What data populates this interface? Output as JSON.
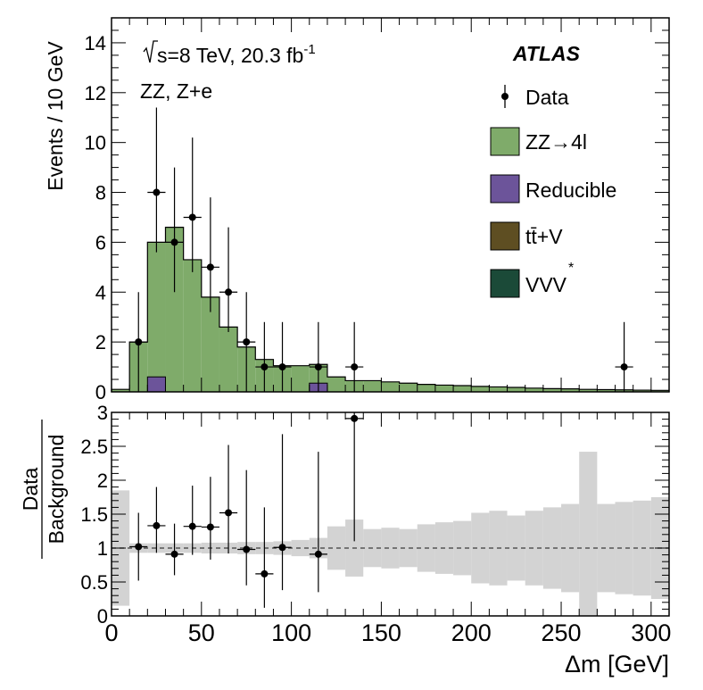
{
  "chart_data": [
    {
      "type": "histogram",
      "panel": "main",
      "ylabel": "Events / 10 GeV",
      "ylim": [
        0,
        15
      ],
      "xlim": [
        0,
        310
      ],
      "bin_width": 10,
      "yticks": [
        "0",
        "2",
        "4",
        "6",
        "8",
        "10",
        "12",
        "14"
      ],
      "annotations": {
        "energy_prefix": "s=8 TeV, 20.3 fb",
        "energy_sup": "-1",
        "channel": "ZZ, Z+e",
        "experiment": "ATLAS"
      },
      "legend": {
        "data": "Data",
        "zz": "ZZ→4l",
        "reducible": "Reducible",
        "ttv": "tt̄+V",
        "vvv": "VVV",
        "vvv_sup": "*"
      },
      "colors": {
        "zz": "#7fab6a",
        "reducible": "#6c549a",
        "ttv": "#5e4e22",
        "vvv": "#1b4a38",
        "band": "#d3d3d3"
      },
      "bin_edges": [
        0,
        10,
        20,
        30,
        40,
        50,
        60,
        70,
        80,
        90,
        100,
        110,
        120,
        130,
        140,
        150,
        160,
        170,
        180,
        190,
        200,
        210,
        220,
        230,
        240,
        250,
        260,
        270,
        280,
        290,
        300,
        310
      ],
      "stack_total": [
        0.1,
        2.0,
        6.0,
        6.6,
        5.3,
        3.8,
        2.6,
        1.8,
        1.3,
        1.05,
        1.05,
        1.1,
        0.6,
        0.45,
        0.45,
        0.4,
        0.35,
        0.3,
        0.27,
        0.25,
        0.22,
        0.2,
        0.18,
        0.15,
        0.13,
        0.12,
        0.1,
        0.09,
        0.08,
        0.07,
        0.06
      ],
      "reducible": [
        0,
        0,
        0.6,
        0,
        0,
        0,
        0,
        0,
        0,
        0,
        0,
        0.35,
        0,
        0,
        0,
        0,
        0,
        0,
        0,
        0,
        0,
        0,
        0,
        0,
        0,
        0,
        0,
        0,
        0,
        0,
        0
      ],
      "data_points": [
        {
          "x": 15,
          "y": 2,
          "lo": 0.0,
          "hi": 4.0
        },
        {
          "x": 25,
          "y": 8,
          "lo": 5.6,
          "hi": 11.4
        },
        {
          "x": 35,
          "y": 6,
          "lo": 4.0,
          "hi": 9.0
        },
        {
          "x": 45,
          "y": 7,
          "lo": 4.8,
          "hi": 10.2
        },
        {
          "x": 55,
          "y": 5,
          "lo": 3.2,
          "hi": 7.8
        },
        {
          "x": 65,
          "y": 4,
          "lo": 2.4,
          "hi": 6.6
        },
        {
          "x": 75,
          "y": 2,
          "lo": 0.0,
          "hi": 4.0
        },
        {
          "x": 85,
          "y": 1,
          "lo": 0.0,
          "hi": 2.8
        },
        {
          "x": 95,
          "y": 1,
          "lo": 0.0,
          "hi": 2.8
        },
        {
          "x": 115,
          "y": 1,
          "lo": 0.0,
          "hi": 2.8
        },
        {
          "x": 135,
          "y": 1,
          "lo": 0.0,
          "hi": 2.8
        },
        {
          "x": 285,
          "y": 1,
          "lo": 0.0,
          "hi": 2.8
        }
      ]
    },
    {
      "type": "ratio",
      "panel": "ratio",
      "ylabel_top": "Data",
      "ylabel_bottom": "Background",
      "ylim": [
        0,
        3
      ],
      "yticks": [
        "0",
        "0.5",
        "1",
        "1.5",
        "2",
        "2.5",
        "3"
      ],
      "xlabel": "Δm [GeV]",
      "xticks": [
        "0",
        "50",
        "100",
        "150",
        "200",
        "250",
        "300"
      ],
      "xtick_values": [
        0,
        50,
        100,
        150,
        200,
        250,
        300
      ],
      "band": [
        {
          "x0": 0,
          "x1": 10,
          "lo": 0.15,
          "hi": 1.85
        },
        {
          "x0": 10,
          "x1": 20,
          "lo": 0.93,
          "hi": 1.07
        },
        {
          "x0": 20,
          "x1": 30,
          "lo": 0.93,
          "hi": 1.07
        },
        {
          "x0": 30,
          "x1": 40,
          "lo": 0.93,
          "hi": 1.07
        },
        {
          "x0": 40,
          "x1": 50,
          "lo": 0.93,
          "hi": 1.07
        },
        {
          "x0": 50,
          "x1": 60,
          "lo": 0.92,
          "hi": 1.08
        },
        {
          "x0": 60,
          "x1": 70,
          "lo": 0.92,
          "hi": 1.08
        },
        {
          "x0": 70,
          "x1": 80,
          "lo": 0.91,
          "hi": 1.09
        },
        {
          "x0": 80,
          "x1": 90,
          "lo": 0.91,
          "hi": 1.09
        },
        {
          "x0": 90,
          "x1": 100,
          "lo": 0.9,
          "hi": 1.1
        },
        {
          "x0": 100,
          "x1": 110,
          "lo": 0.88,
          "hi": 1.12
        },
        {
          "x0": 110,
          "x1": 120,
          "lo": 0.85,
          "hi": 1.15
        },
        {
          "x0": 120,
          "x1": 130,
          "lo": 0.68,
          "hi": 1.32
        },
        {
          "x0": 130,
          "x1": 140,
          "lo": 0.58,
          "hi": 1.42
        },
        {
          "x0": 140,
          "x1": 150,
          "lo": 0.72,
          "hi": 1.28
        },
        {
          "x0": 150,
          "x1": 160,
          "lo": 0.7,
          "hi": 1.3
        },
        {
          "x0": 160,
          "x1": 170,
          "lo": 0.72,
          "hi": 1.28
        },
        {
          "x0": 170,
          "x1": 180,
          "lo": 0.65,
          "hi": 1.35
        },
        {
          "x0": 180,
          "x1": 190,
          "lo": 0.62,
          "hi": 1.38
        },
        {
          "x0": 190,
          "x1": 200,
          "lo": 0.6,
          "hi": 1.4
        },
        {
          "x0": 200,
          "x1": 210,
          "lo": 0.48,
          "hi": 1.52
        },
        {
          "x0": 210,
          "x1": 220,
          "lo": 0.45,
          "hi": 1.55
        },
        {
          "x0": 220,
          "x1": 230,
          "lo": 0.52,
          "hi": 1.48
        },
        {
          "x0": 230,
          "x1": 240,
          "lo": 0.45,
          "hi": 1.55
        },
        {
          "x0": 240,
          "x1": 250,
          "lo": 0.4,
          "hi": 1.6
        },
        {
          "x0": 250,
          "x1": 260,
          "lo": 0.35,
          "hi": 1.65
        },
        {
          "x0": 260,
          "x1": 270,
          "lo": 0.0,
          "hi": 2.42
        },
        {
          "x0": 270,
          "x1": 280,
          "lo": 0.35,
          "hi": 1.65
        },
        {
          "x0": 280,
          "x1": 290,
          "lo": 0.32,
          "hi": 1.68
        },
        {
          "x0": 290,
          "x1": 300,
          "lo": 0.3,
          "hi": 1.7
        },
        {
          "x0": 300,
          "x1": 310,
          "lo": 0.25,
          "hi": 1.75
        }
      ],
      "points": [
        {
          "x": 15,
          "y": 1.02,
          "lo": 0.52,
          "hi": 1.52
        },
        {
          "x": 25,
          "y": 1.33,
          "lo": 0.93,
          "hi": 1.9
        },
        {
          "x": 35,
          "y": 0.91,
          "lo": 0.6,
          "hi": 1.36
        },
        {
          "x": 45,
          "y": 1.32,
          "lo": 0.9,
          "hi": 1.92
        },
        {
          "x": 55,
          "y": 1.31,
          "lo": 0.83,
          "hi": 2.05
        },
        {
          "x": 65,
          "y": 1.52,
          "lo": 0.92,
          "hi": 2.52
        },
        {
          "x": 75,
          "y": 0.98,
          "lo": 0.45,
          "hi": 2.15
        },
        {
          "x": 85,
          "y": 0.62,
          "lo": 0.12,
          "hi": 1.6
        },
        {
          "x": 95,
          "y": 1.01,
          "lo": 0.38,
          "hi": 2.68
        },
        {
          "x": 115,
          "y": 0.91,
          "lo": 0.35,
          "hi": 2.42
        },
        {
          "x": 135,
          "y": 2.91,
          "lo": 1.1,
          "hi": 3.0
        }
      ]
    }
  ]
}
